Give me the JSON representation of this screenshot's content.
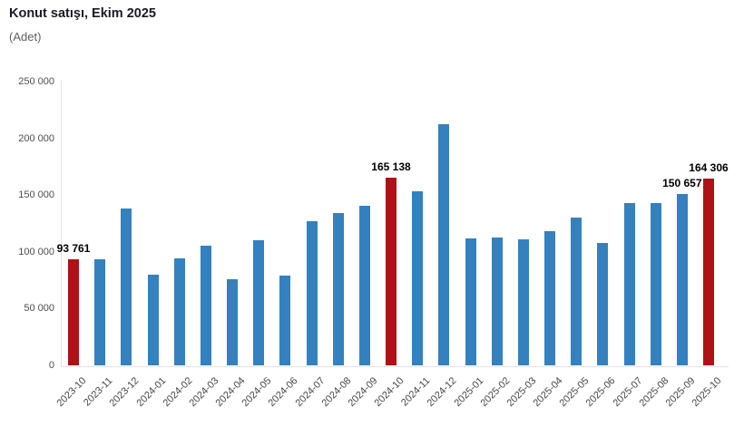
{
  "header": {
    "title": "Konut satışı, Ekim 2025",
    "subtitle": "(Adet)"
  },
  "chart_data": {
    "type": "bar",
    "title": "Konut satışı, Ekim 2025",
    "unit_label": "(Adet)",
    "categories": [
      "2023-10",
      "2023-11",
      "2023-12",
      "2024-01",
      "2024-02",
      "2024-03",
      "2024-04",
      "2024-05",
      "2024-06",
      "2024-07",
      "2024-08",
      "2024-09",
      "2024-10",
      "2024-11",
      "2024-12",
      "2025-01",
      "2025-02",
      "2025-03",
      "2025-04",
      "2025-05",
      "2025-06",
      "2025-07",
      "2025-08",
      "2025-09",
      "2025-10"
    ],
    "values": [
      93761,
      93514,
      138577,
      80308,
      93902,
      105476,
      75569,
      110588,
      79313,
      127088,
      134155,
      140919,
      165138,
      153014,
      212637,
      112173,
      112818,
      110795,
      118359,
      130025,
      107723,
      142858,
      143319,
      150657,
      164306
    ],
    "highlighted_indices": [
      0,
      12,
      24
    ],
    "data_labels": [
      {
        "index": 0,
        "text": "93 761"
      },
      {
        "index": 12,
        "text": "165 138"
      },
      {
        "index": 23,
        "text": "150 657"
      },
      {
        "index": 24,
        "text": "164 306"
      }
    ],
    "xlabel": "",
    "ylabel": "",
    "ylim": [
      0,
      250000
    ],
    "ytick_step": 50000,
    "yticks": [
      "0",
      "50 000",
      "100 000",
      "150 000",
      "200 000",
      "250 000"
    ],
    "grid": false,
    "legend": "none",
    "colors": {
      "bar": "#3381BE",
      "highlight": "#AF1116",
      "axis_line": "#E3E3E3",
      "tick_label": "#4D4D4D",
      "data_label": "#000000",
      "title": "#1A1A26",
      "subtitle": "#5F5F5F",
      "background": "#FFFFFF"
    }
  }
}
